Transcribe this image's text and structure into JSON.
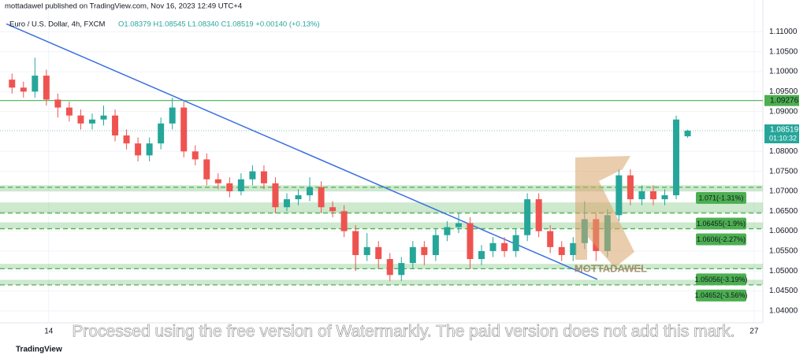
{
  "header": {
    "publisher": "mottadawel published on TradingView.com, Nov 16, 2023 12:49 UTC+4",
    "symbol": "Euro / U.S. Dollar, 4h, FXCM",
    "ohlc": "O1.08379 H1.08545 L1.08340 C1.08519 +0.00140 (+0.13%)"
  },
  "chart_data": {
    "type": "candlestick",
    "open": [
      1.098,
      1.096,
      1.095,
      1.099,
      1.093,
      1.091,
      1.089,
      1.087,
      1.088,
      1.089,
      1.084,
      1.082,
      1.079,
      1.082,
      1.087,
      1.091,
      1.08,
      1.078,
      1.073,
      1.072,
      1.07,
      1.073,
      1.075,
      1.072,
      1.066,
      1.068,
      1.069,
      1.071,
      1.066,
      1.065,
      1.06,
      1.054,
      1.056,
      1.053,
      1.049,
      1.052,
      1.056,
      1.054,
      1.059,
      1.061,
      1.062,
      1.053,
      1.055,
      1.057,
      1.055,
      1.059,
      1.068,
      1.06,
      1.056,
      1.054,
      1.057,
      1.063,
      1.055,
      1.064,
      1.074,
      1.068,
      1.07,
      1.068,
      1.069,
      1.08379
    ],
    "high": [
      1.0995,
      1.0975,
      1.1035,
      1.1005,
      1.0945,
      1.0925,
      1.0905,
      1.0895,
      1.0915,
      1.0905,
      1.0855,
      1.0835,
      1.0835,
      1.0885,
      1.0935,
      1.0925,
      1.0815,
      1.0795,
      1.0745,
      1.0735,
      1.0745,
      1.0765,
      1.0765,
      1.0735,
      1.0695,
      1.0705,
      1.0735,
      1.0725,
      1.0675,
      1.0665,
      1.0615,
      1.0595,
      1.0575,
      1.0545,
      1.0535,
      1.0575,
      1.0575,
      1.0605,
      1.0625,
      1.0645,
      1.0635,
      1.0565,
      1.0585,
      1.0585,
      1.0605,
      1.0695,
      1.0695,
      1.0615,
      1.0575,
      1.0585,
      1.0675,
      1.0645,
      1.0655,
      1.0755,
      1.0755,
      1.0715,
      1.0715,
      1.0705,
      1.089,
      1.08545
    ],
    "low": [
      1.0945,
      1.0935,
      1.0935,
      1.0915,
      1.0885,
      1.0875,
      1.0855,
      1.0855,
      1.0865,
      1.0825,
      1.0805,
      1.0775,
      1.0775,
      1.0805,
      1.0855,
      1.0785,
      1.0765,
      1.0715,
      1.0705,
      1.0685,
      1.069,
      1.0715,
      1.0705,
      1.0645,
      1.065,
      1.0665,
      1.0675,
      1.0645,
      1.0635,
      1.0585,
      1.05,
      1.0525,
      1.0505,
      1.0475,
      1.0475,
      1.0505,
      1.0515,
      1.0525,
      1.0575,
      1.0595,
      1.0505,
      1.0515,
      1.0535,
      1.0535,
      1.0535,
      1.0575,
      1.0585,
      1.0545,
      1.0525,
      1.0525,
      1.0555,
      1.0525,
      1.0535,
      1.0625,
      1.0665,
      1.0665,
      1.0665,
      1.0665,
      1.068,
      1.0834
    ],
    "close": [
      1.096,
      1.095,
      1.099,
      1.093,
      1.091,
      1.089,
      1.087,
      1.088,
      1.089,
      1.084,
      1.082,
      1.079,
      1.082,
      1.087,
      1.091,
      1.08,
      1.078,
      1.073,
      1.072,
      1.07,
      1.073,
      1.075,
      1.072,
      1.066,
      1.068,
      1.069,
      1.071,
      1.066,
      1.065,
      1.06,
      1.054,
      1.056,
      1.053,
      1.049,
      1.052,
      1.056,
      1.054,
      1.059,
      1.061,
      1.062,
      1.053,
      1.055,
      1.057,
      1.055,
      1.059,
      1.068,
      1.06,
      1.056,
      1.054,
      1.057,
      1.063,
      1.055,
      1.064,
      1.074,
      1.068,
      1.07,
      1.068,
      1.069,
      1.088,
      1.08519
    ],
    "up_color": "#26a69a",
    "down_color": "#ef5350",
    "xlim": [
      0,
      66
    ],
    "xticks": [
      {
        "value": 3.7,
        "label": "14"
      },
      {
        "value": 65.3,
        "label": "27"
      }
    ],
    "ylim": [
      1.038,
      1.116
    ],
    "yticks": [
      {
        "value": 1.11,
        "label": "1.11000"
      },
      {
        "value": 1.105,
        "label": "1.10500"
      },
      {
        "value": 1.1,
        "label": "1.10000"
      },
      {
        "value": 1.095,
        "label": "1.09500"
      },
      {
        "value": 1.09,
        "label": "1.09000"
      },
      {
        "value": 1.08,
        "label": "1.08000"
      },
      {
        "value": 1.075,
        "label": "1.07500"
      },
      {
        "value": 1.07,
        "label": "1.07000"
      },
      {
        "value": 1.065,
        "label": "1.06500"
      },
      {
        "value": 1.06,
        "label": "1.06000"
      },
      {
        "value": 1.055,
        "label": "1.05500"
      },
      {
        "value": 1.05,
        "label": "1.05000"
      },
      {
        "value": 1.045,
        "label": "1.04500"
      },
      {
        "value": 1.04,
        "label": "1.04000"
      }
    ],
    "grid": true,
    "zones": [
      [
        1.07,
        1.0715
      ],
      [
        1.0645,
        1.0672
      ],
      [
        1.0606,
        1.0622
      ],
      [
        1.0505,
        1.0518
      ],
      [
        1.0465,
        1.0478
      ]
    ],
    "levels": [
      {
        "value": 1.071,
        "label": "1.071(-1.31%)"
      },
      {
        "value": 1.06455,
        "label": "1.06455(-1.9%)"
      },
      {
        "value": 1.0606,
        "label": "1.0606(-2.27%)"
      },
      {
        "value": 1.05056,
        "label": "1.05056(-3.19%)"
      },
      {
        "value": 1.04652,
        "label": "1.04652(-3.56%)"
      }
    ],
    "level_color": "#4caf50",
    "resistance": 1.09276,
    "last_price": 1.08519,
    "countdown": "01:10:32",
    "trendline": {
      "x": [
        0,
        51.6
      ],
      "y": [
        1.112,
        1.0479
      ],
      "color": "#3b6fe0"
    }
  },
  "watermark_logo": "MOTTADAWEL",
  "watermark_text": "Processed using the free version of Watermarkly. The paid version does not add this mark.",
  "footer": "TradingView"
}
